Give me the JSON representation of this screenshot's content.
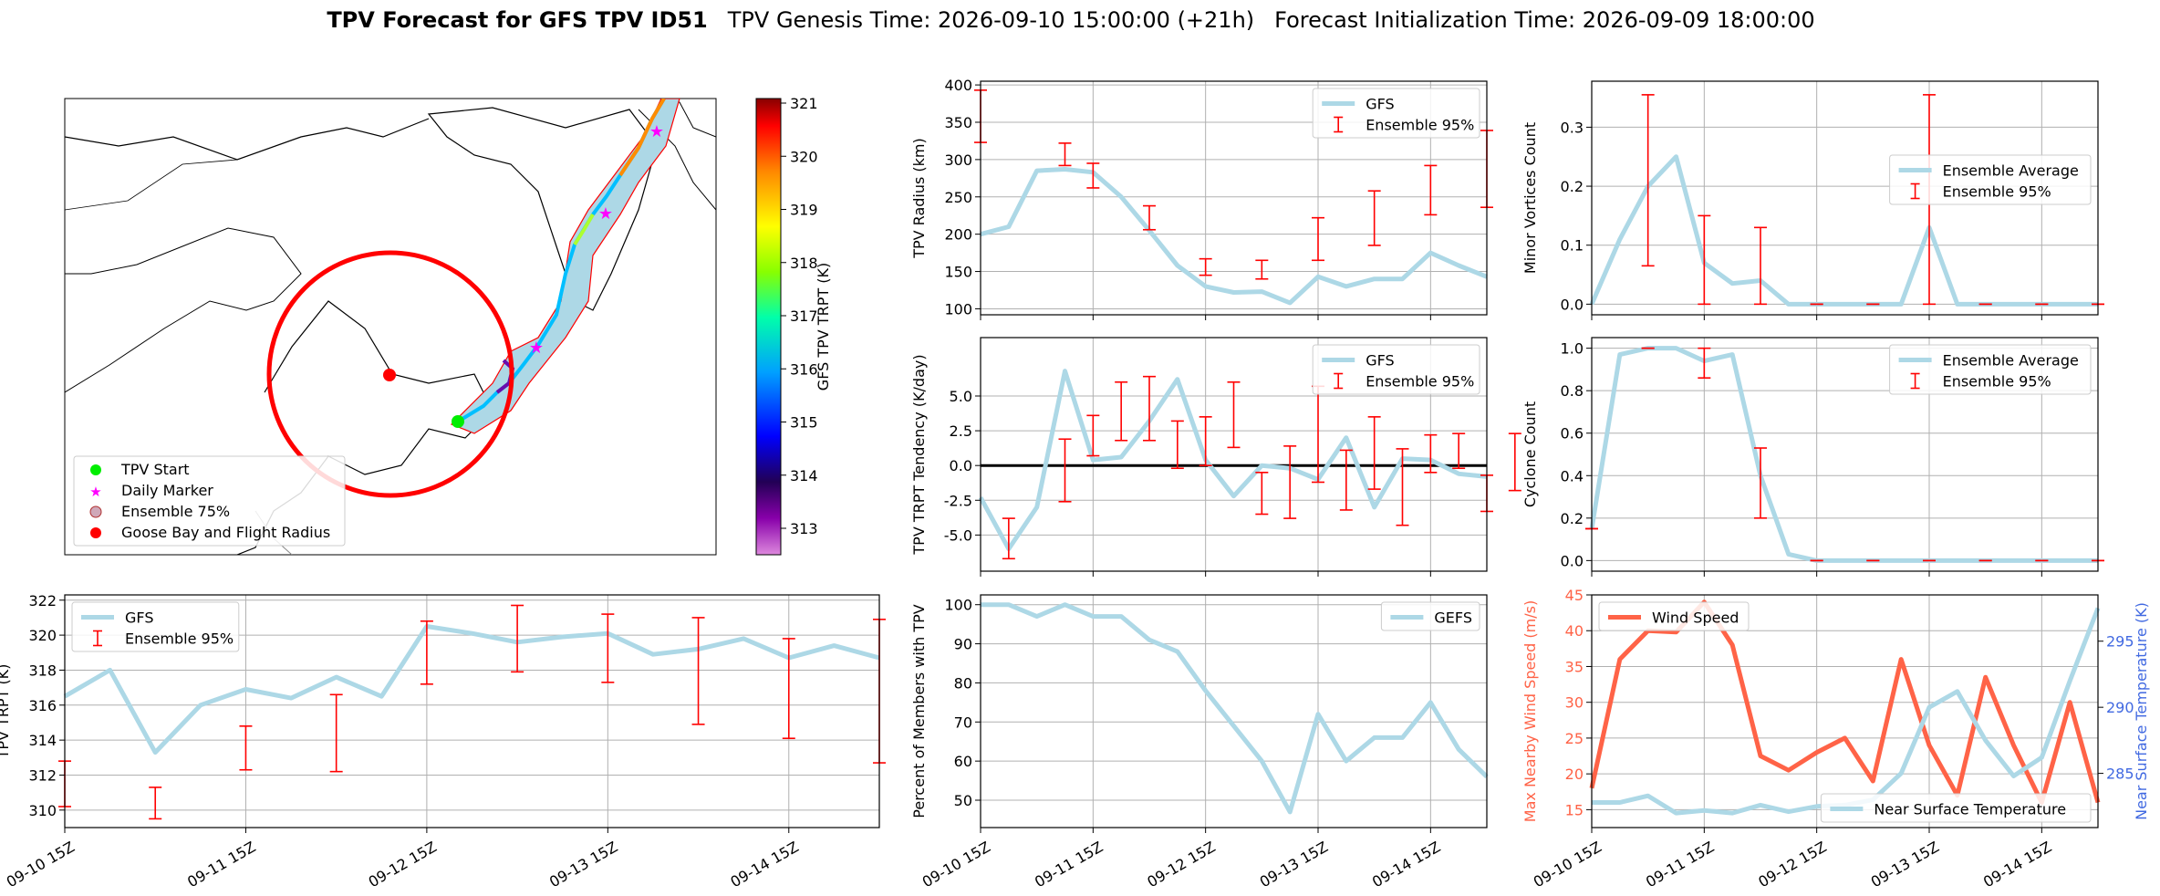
{
  "title": {
    "bold": "TPV Forecast for GFS TPV ID51",
    "genesis": "TPV Genesis Time: 2026-09-10 15:00:00 (+21h)",
    "init": "Forecast Initialization Time: 2026-09-09 18:00:00"
  },
  "colors": {
    "gfs_line": "#add8e6",
    "errorbar": "#ff0000",
    "wind": "#ff6347",
    "temp_axis": "#4169e1",
    "flight_circle": "#ff0000"
  },
  "map": {
    "legend": [
      "TPV Start",
      "Daily Marker",
      "Ensemble 75%",
      "Goose Bay and Flight Radius"
    ],
    "colorbar_label": "GFS TPV TRPT (K)",
    "colorbar_ticks": [
      "313",
      "314",
      "315",
      "316",
      "317",
      "318",
      "319",
      "320",
      "321"
    ]
  },
  "chart_data": [
    {
      "id": "radius",
      "type": "line",
      "ylabel": "TPV Radius (km)",
      "ylim": [
        92,
        405
      ],
      "yticks": [
        100,
        150,
        200,
        250,
        300,
        350,
        400
      ],
      "legend": [
        "GFS",
        "Ensemble 95%"
      ],
      "legend_loc": "upper right",
      "series": [
        {
          "name": "GFS",
          "values": [
            200,
            210,
            285,
            287,
            283,
            250,
            205,
            158,
            130,
            122,
            123,
            108,
            143,
            130,
            140,
            140,
            175,
            158,
            143
          ]
        }
      ],
      "errorbars": [
        [
          0,
          323,
          393
        ],
        [
          3,
          292,
          322
        ],
        [
          4,
          262,
          295
        ],
        [
          6,
          206,
          238
        ],
        [
          8,
          145,
          167
        ],
        [
          10,
          140,
          165
        ],
        [
          12,
          165,
          222
        ],
        [
          14,
          185,
          258
        ],
        [
          16,
          226,
          292
        ],
        [
          18,
          236,
          339
        ]
      ]
    },
    {
      "id": "tendency",
      "type": "line",
      "ylabel": "TPV TRPT Tendency (K/day)",
      "ylim": [
        -7.6,
        9.2
      ],
      "yticks": [
        -5.0,
        -2.5,
        0.0,
        2.5,
        5.0
      ],
      "legend": [
        "GFS",
        "Ensemble 95%"
      ],
      "legend_loc": "upper right",
      "series": [
        {
          "name": "GFS",
          "values": [
            -2.3,
            -6.0,
            -3.0,
            6.8,
            0.4,
            0.6,
            3.2,
            6.2,
            0.4,
            -2.2,
            0.0,
            -0.2,
            -1.0,
            2.0,
            -3.0,
            0.5,
            0.4,
            -0.6,
            -0.8
          ]
        }
      ],
      "errorbars": [
        [
          1,
          -6.7,
          -3.8
        ],
        [
          3,
          -2.6,
          1.9
        ],
        [
          4,
          0.7,
          3.6
        ],
        [
          5,
          1.8,
          6.0
        ],
        [
          6,
          1.8,
          6.4
        ],
        [
          7,
          -0.2,
          3.2
        ],
        [
          8,
          0.0,
          3.5
        ],
        [
          9,
          1.3,
          6.0
        ],
        [
          10,
          -3.5,
          -0.5
        ],
        [
          11,
          -3.8,
          1.4
        ],
        [
          12,
          -1.2,
          5.7
        ],
        [
          13,
          -3.2,
          1.1
        ],
        [
          14,
          -1.7,
          3.5
        ],
        [
          15,
          -4.3,
          1.2
        ],
        [
          16,
          -0.5,
          2.2
        ],
        [
          17,
          -0.2,
          2.3
        ],
        [
          18,
          -3.3,
          -0.7
        ],
        [
          19,
          -1.8,
          2.3
        ]
      ],
      "hline": 0
    },
    {
      "id": "trpt",
      "type": "line",
      "ylabel": "TPV TRPT (K)",
      "ylim": [
        309.0,
        322.3
      ],
      "yticks": [
        310,
        312,
        314,
        316,
        318,
        320,
        322
      ],
      "legend": [
        "GFS",
        "Ensemble 95%"
      ],
      "legend_loc": "upper left",
      "series": [
        {
          "name": "GFS",
          "values": [
            316.5,
            318.0,
            313.3,
            316.0,
            316.9,
            316.4,
            317.6,
            316.5,
            320.5,
            320.1,
            319.6,
            319.9,
            320.1,
            318.9,
            319.2,
            319.8,
            318.7,
            319.4,
            318.7
          ]
        }
      ],
      "errorbars": [
        [
          0,
          310.2,
          312.8
        ],
        [
          2,
          309.5,
          311.3
        ],
        [
          4,
          312.3,
          314.8
        ],
        [
          6,
          312.2,
          316.6
        ],
        [
          8,
          317.2,
          320.8
        ],
        [
          10,
          317.9,
          321.7
        ],
        [
          12,
          317.3,
          321.2
        ],
        [
          14,
          314.9,
          321.0
        ],
        [
          16,
          314.1,
          319.8
        ],
        [
          18,
          312.7,
          320.9
        ]
      ]
    },
    {
      "id": "members",
      "type": "line",
      "ylabel": "Percent of Members with TPV",
      "ylim": [
        43,
        102.5
      ],
      "yticks": [
        50,
        60,
        70,
        80,
        90,
        100
      ],
      "legend": [
        "GEFS"
      ],
      "legend_loc": "upper right",
      "series": [
        {
          "name": "GEFS",
          "values": [
            100,
            100,
            97,
            100,
            97,
            97,
            91,
            88,
            78,
            69,
            60,
            47,
            72,
            60,
            66,
            66,
            75,
            63,
            56
          ]
        }
      ]
    },
    {
      "id": "minor",
      "type": "line",
      "ylabel": "Minor Vortices Count",
      "ylim": [
        -0.018,
        0.378
      ],
      "yticks": [
        0.0,
        0.1,
        0.2,
        0.3
      ],
      "legend": [
        "Ensemble Average",
        "Ensemble 95%"
      ],
      "legend_loc": "center right",
      "series": [
        {
          "name": "Ensemble Average",
          "values": [
            0.0,
            0.11,
            0.2,
            0.25,
            0.07,
            0.035,
            0.04,
            0.0,
            0.0,
            0.0,
            0.0,
            0.0,
            0.13,
            0.0,
            0.0,
            0.0,
            0.0,
            0.0,
            0.0
          ]
        }
      ],
      "errorbars": [
        [
          2,
          0.065,
          0.355
        ],
        [
          4,
          0.0,
          0.15
        ],
        [
          6,
          0.0,
          0.13
        ],
        [
          8,
          0.0,
          0.0
        ],
        [
          10,
          0.0,
          0.0
        ],
        [
          12,
          0.0,
          0.355
        ],
        [
          14,
          0.0,
          0.0
        ],
        [
          16,
          0.0,
          0.0
        ],
        [
          18,
          0.0,
          0.0
        ]
      ]
    },
    {
      "id": "cyclone",
      "type": "line",
      "ylabel": "Cyclone Count",
      "ylim": [
        -0.05,
        1.05
      ],
      "yticks": [
        0.0,
        0.2,
        0.4,
        0.6,
        0.8,
        1.0
      ],
      "legend": [
        "Ensemble Average",
        "Ensemble 95%"
      ],
      "legend_loc": "upper right",
      "series": [
        {
          "name": "Ensemble Average",
          "values": [
            0.15,
            0.97,
            1.0,
            1.0,
            0.94,
            0.97,
            0.4,
            0.03,
            0.0,
            0.0,
            0.0,
            0.0,
            0.0,
            0.0,
            0.0,
            0.0,
            0.0,
            0.0,
            0.0
          ]
        }
      ],
      "errorbars": [
        [
          0,
          0.15,
          0.15
        ],
        [
          2,
          1.0,
          1.0
        ],
        [
          4,
          0.86,
          1.0
        ],
        [
          6,
          0.2,
          0.53
        ],
        [
          8,
          0.0,
          0.0
        ],
        [
          10,
          0.0,
          0.0
        ],
        [
          12,
          0.0,
          0.0
        ],
        [
          14,
          0.0,
          0.0
        ],
        [
          16,
          0.0,
          0.0
        ],
        [
          18,
          0.0,
          0.0
        ]
      ]
    },
    {
      "id": "wind",
      "type": "line",
      "ylabel": "Max Nearby Wind Speed (m/s)",
      "ylim": [
        12.5,
        45
      ],
      "yticks": [
        15,
        20,
        25,
        30,
        35,
        40,
        45
      ],
      "y2label": "Near Surface Temperature (K)",
      "y2lim": [
        280.9,
        298.5
      ],
      "y2ticks": [
        285,
        290,
        295
      ],
      "legend": [
        "Wind Speed"
      ],
      "legend_loc": "upper left",
      "legend2": [
        "Near Surface Temperature"
      ],
      "legend2_loc": "lower right",
      "series": [
        {
          "name": "Wind Speed",
          "values": [
            18,
            36,
            40,
            39.8,
            44,
            38,
            22.5,
            20.5,
            23,
            25,
            19,
            36,
            24,
            17,
            33.5,
            24,
            16,
            30,
            16
          ]
        },
        {
          "name": "Near Surface Temperature",
          "axis": "right",
          "values": [
            282.8,
            282.8,
            283.3,
            282.0,
            282.2,
            282.0,
            282.6,
            282.1,
            282.5,
            282.6,
            283.0,
            285.0,
            290.0,
            291.2,
            287.5,
            284.8,
            286.2,
            292.0,
            297.5
          ]
        }
      ]
    }
  ],
  "xaxis": {
    "ticks": [
      "09-10 15Z",
      "09-11 15Z",
      "09-12 15Z",
      "09-13 15Z",
      "09-14 15Z"
    ],
    "tick_index": [
      0,
      4,
      8,
      12,
      16
    ]
  }
}
